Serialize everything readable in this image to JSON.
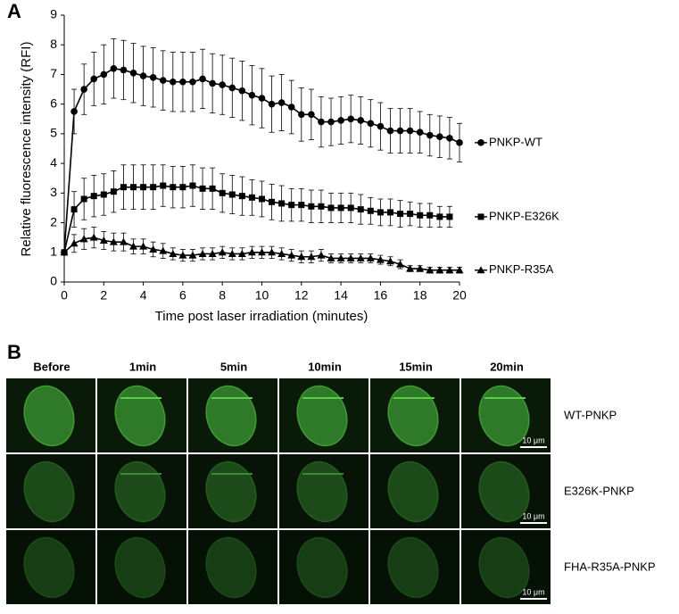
{
  "chart_data": {
    "type": "line",
    "panel_label": "A",
    "x_label": "Time post laser irradiation (minutes)",
    "y_label": "Relative fluorescence intensity (RFI)",
    "x": [
      0,
      0.5,
      1,
      1.5,
      2,
      2.5,
      3,
      3.5,
      4,
      4.5,
      5,
      5.5,
      6,
      6.5,
      7,
      7.5,
      8,
      8.5,
      9,
      9.5,
      10,
      10.5,
      11,
      11.5,
      12,
      12.5,
      13,
      13.5,
      14,
      14.5,
      15,
      15.5,
      16,
      16.5,
      17,
      17.5,
      18,
      18.5,
      19,
      19.5,
      20
    ],
    "xlim": [
      0,
      20
    ],
    "xticks": [
      0,
      2,
      4,
      6,
      8,
      10,
      12,
      14,
      16,
      18,
      20
    ],
    "ylim": [
      0,
      9
    ],
    "yticks": [
      0,
      1,
      2,
      3,
      4,
      5,
      6,
      7,
      8,
      9
    ],
    "series": [
      {
        "name": "PNKP-WT",
        "color": "#000000",
        "marker": "circle",
        "values": [
          1,
          5.75,
          6.5,
          6.85,
          7.0,
          7.2,
          7.15,
          7.05,
          6.95,
          6.9,
          6.8,
          6.75,
          6.75,
          6.75,
          6.85,
          6.7,
          6.65,
          6.55,
          6.45,
          6.3,
          6.2,
          6.0,
          6.05,
          5.9,
          5.65,
          5.65,
          5.4,
          5.4,
          5.45,
          5.5,
          5.45,
          5.35,
          5.25,
          5.1,
          5.1,
          5.1,
          5.05,
          4.95,
          4.9,
          4.85,
          4.7
        ],
        "errors": [
          0,
          0.75,
          0.85,
          0.9,
          1.0,
          1.0,
          1.0,
          1.0,
          1.0,
          1.0,
          1.0,
          1.0,
          1.0,
          1.0,
          1.0,
          1.0,
          1.0,
          1.0,
          1.0,
          1.0,
          1.0,
          0.95,
          0.95,
          0.9,
          0.9,
          0.85,
          0.85,
          0.8,
          0.8,
          0.8,
          0.8,
          0.8,
          0.8,
          0.75,
          0.75,
          0.75,
          0.7,
          0.7,
          0.7,
          0.7,
          0.65
        ]
      },
      {
        "name": "PNKP-E326K",
        "color": "#000000",
        "marker": "square",
        "values": [
          1,
          2.45,
          2.8,
          2.9,
          2.95,
          3.05,
          3.2,
          3.2,
          3.2,
          3.2,
          3.25,
          3.2,
          3.2,
          3.25,
          3.15,
          3.15,
          3.0,
          2.95,
          2.9,
          2.85,
          2.8,
          2.7,
          2.65,
          2.6,
          2.6,
          2.55,
          2.55,
          2.5,
          2.5,
          2.5,
          2.45,
          2.4,
          2.35,
          2.35,
          2.3,
          2.3,
          2.25,
          2.25,
          2.2,
          2.2,
          null
        ],
        "errors": [
          0,
          0.6,
          0.7,
          0.7,
          0.7,
          0.7,
          0.75,
          0.75,
          0.75,
          0.75,
          0.7,
          0.7,
          0.7,
          0.7,
          0.7,
          0.7,
          0.65,
          0.65,
          0.65,
          0.6,
          0.6,
          0.6,
          0.6,
          0.55,
          0.55,
          0.55,
          0.55,
          0.5,
          0.5,
          0.5,
          0.5,
          0.45,
          0.45,
          0.45,
          0.45,
          0.4,
          0.4,
          0.4,
          0.35,
          0.35,
          null
        ]
      },
      {
        "name": "PNKP-R35A",
        "color": "#000000",
        "marker": "triangle",
        "values": [
          1,
          1.3,
          1.45,
          1.5,
          1.4,
          1.35,
          1.35,
          1.2,
          1.2,
          1.1,
          1.05,
          0.95,
          0.9,
          0.9,
          0.95,
          0.95,
          1.0,
          0.95,
          0.95,
          1.0,
          1.0,
          1.0,
          0.95,
          0.9,
          0.85,
          0.85,
          0.9,
          0.8,
          0.8,
          0.8,
          0.8,
          0.8,
          0.75,
          0.7,
          0.6,
          0.45,
          0.45,
          0.4,
          0.4,
          0.4,
          0.4
        ],
        "errors": [
          0,
          0.3,
          0.35,
          0.35,
          0.3,
          0.3,
          0.3,
          0.25,
          0.25,
          0.25,
          0.25,
          0.2,
          0.2,
          0.2,
          0.2,
          0.2,
          0.2,
          0.2,
          0.2,
          0.2,
          0.2,
          0.2,
          0.2,
          0.2,
          0.2,
          0.2,
          0.2,
          0.15,
          0.15,
          0.15,
          0.15,
          0.15,
          0.15,
          0.15,
          0.15,
          0.1,
          0.1,
          0.1,
          0.1,
          0.1,
          0.1
        ]
      }
    ]
  },
  "panel_b": {
    "label": "B",
    "columns": [
      "Before",
      "1min",
      "5min",
      "10min",
      "15min",
      "20min"
    ],
    "rows": [
      {
        "label": "WT-PNKP",
        "scale_bar": "10 μm"
      },
      {
        "label": "E326K-PNKP",
        "scale_bar": "10 μm"
      },
      {
        "label": "FHA-R35A-PNKP",
        "scale_bar": "10 μm"
      }
    ]
  }
}
